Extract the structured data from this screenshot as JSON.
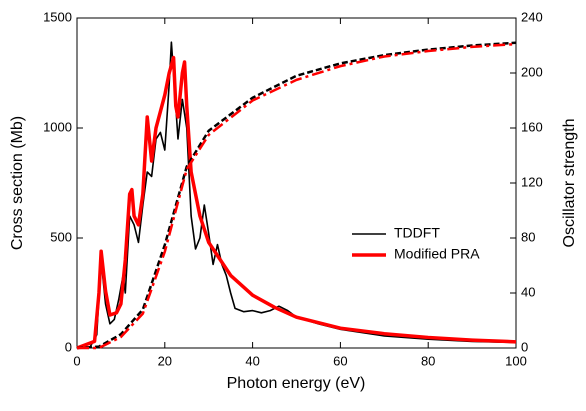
{
  "chart_data": {
    "type": "line",
    "xlabel": "Photon energy (eV)",
    "ylabel": "Cross section (Mb)",
    "y2label": "Oscillator strength",
    "xlim": [
      0,
      100
    ],
    "xticks": [
      0,
      20,
      40,
      60,
      80,
      100
    ],
    "ylim": [
      0,
      1500
    ],
    "yticks": [
      0,
      500,
      1000,
      1500
    ],
    "y2lim": [
      0,
      240
    ],
    "y2ticks": [
      0,
      40,
      80,
      120,
      160,
      200,
      240
    ],
    "legend": "center-right",
    "series": [
      {
        "name": "TDDFT",
        "color": "#000000",
        "style": "solid",
        "axis": "y",
        "x": [
          0,
          3,
          4.5,
          5.5,
          6.5,
          7.5,
          8.5,
          9.5,
          10.5,
          11,
          12,
          13,
          14,
          15,
          16,
          17,
          18,
          19,
          20,
          21,
          21.5,
          22.5,
          23,
          24,
          25,
          26,
          27,
          28,
          29,
          30,
          31,
          32,
          33,
          34,
          35,
          36,
          38,
          40,
          42,
          44,
          46,
          48,
          50,
          55,
          60,
          70,
          80,
          90,
          100
        ],
        "values": [
          0,
          5,
          60,
          400,
          200,
          110,
          130,
          220,
          330,
          250,
          600,
          560,
          480,
          650,
          800,
          780,
          950,
          980,
          900,
          1200,
          1390,
          1100,
          950,
          1130,
          1000,
          600,
          450,
          500,
          650,
          520,
          380,
          470,
          380,
          330,
          250,
          180,
          165,
          170,
          160,
          170,
          190,
          170,
          140,
          110,
          85,
          55,
          40,
          30,
          25
        ]
      },
      {
        "name": "Modified PRA",
        "color": "#ff0000",
        "style": "thick",
        "axis": "y",
        "x": [
          0,
          4,
          5,
          5.5,
          6.5,
          7.5,
          9,
          10,
          11,
          12,
          12.5,
          13,
          14,
          15,
          16,
          17,
          18,
          20,
          21,
          22,
          22.5,
          23,
          24,
          24.5,
          25,
          26,
          28,
          30,
          35,
          40,
          45,
          50,
          60,
          70,
          80,
          90,
          100
        ],
        "values": [
          0,
          30,
          250,
          440,
          260,
          150,
          160,
          200,
          400,
          700,
          720,
          600,
          560,
          700,
          1050,
          850,
          1000,
          1150,
          1250,
          1320,
          1100,
          1050,
          1250,
          1300,
          1100,
          800,
          600,
          480,
          330,
          240,
          185,
          140,
          90,
          65,
          48,
          36,
          28
        ]
      },
      {
        "name": "TDDFT",
        "color": "#000000",
        "style": "dash",
        "axis": "y2",
        "x": [
          0,
          5,
          10,
          15,
          20,
          25,
          30,
          40,
          50,
          60,
          70,
          80,
          90,
          100
        ],
        "values": [
          0,
          1,
          10,
          28,
          75,
          132,
          158,
          182,
          198,
          207,
          213,
          217,
          220,
          222
        ]
      },
      {
        "name": "Modified PRA",
        "color": "#ff0000",
        "style": "dashdot",
        "axis": "y2",
        "x": [
          0,
          5,
          10,
          15,
          20,
          25,
          30,
          40,
          50,
          60,
          70,
          80,
          90,
          100
        ],
        "values": [
          0,
          0,
          8,
          25,
          70,
          130,
          155,
          180,
          195,
          205,
          212,
          216,
          219,
          221
        ]
      }
    ]
  }
}
